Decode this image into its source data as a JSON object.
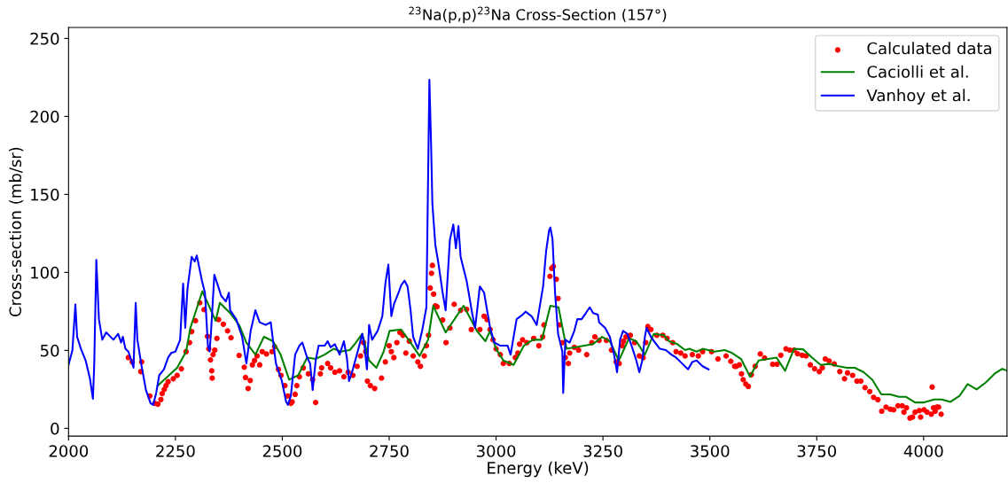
{
  "chart_data": {
    "type": "line",
    "title": "$^{23}$Na(p,p)$^{23}$Na Cross-Section (157°)",
    "xlabel": "Energy (keV)",
    "ylabel": "Cross-section (mb/sr)",
    "xlim": [
      2000,
      4195
    ],
    "ylim": [
      -5,
      257
    ],
    "xticks": [
      2000,
      2250,
      2500,
      2750,
      3000,
      3250,
      3500,
      3750,
      4000
    ],
    "yticks": [
      0,
      50,
      100,
      150,
      200,
      250
    ],
    "grid": false,
    "legend": "top right",
    "series": [
      {
        "name": "Calculated data",
        "type": "scatter",
        "marker": "circle",
        "color": "#ff0000",
        "x": [
          2140,
          2149,
          2171,
          2169,
          2190,
          2202,
          2209,
          2216,
          2219,
          2224,
          2228,
          2233,
          2245,
          2254,
          2264,
          2275,
          2283,
          2288,
          2297,
          2307,
          2317,
          2325,
          2328,
          2332,
          2335,
          2336,
          2338,
          2342,
          2347,
          2351,
          2362,
          2372,
          2380,
          2399,
          2411,
          2414,
          2420,
          2425,
          2430,
          2435,
          2441,
          2447,
          2453,
          2463,
          2476,
          2482,
          2491,
          2497,
          2506,
          2513,
          2520,
          2523,
          2530,
          2534,
          2540,
          2549,
          2561,
          2571,
          2578,
          2589,
          2592,
          2606,
          2613,
          2623,
          2634,
          2644,
          2654,
          2665,
          2675,
          2683,
          2690,
          2695,
          2699,
          2706,
          2716,
          2732,
          2741,
          2750,
          2755,
          2761,
          2768,
          2775,
          2782,
          2789,
          2797,
          2806,
          2817,
          2823,
          2832,
          2837,
          2842,
          2846,
          2849,
          2851,
          2854,
          2858,
          2862,
          2875,
          2883,
          2892,
          2902,
          2917,
          2931,
          2942,
          2962,
          2972,
          2979,
          2986,
          2993,
          3000,
          3010,
          3017,
          3031,
          3045,
          3051,
          3055,
          3062,
          3072,
          3088,
          3100,
          3109,
          3112,
          3126,
          3130,
          3134,
          3141,
          3145,
          3148,
          3155,
          3162,
          3169,
          3172,
          3183,
          3193,
          3212,
          3224,
          3231,
          3241,
          3258,
          3270,
          3281,
          3288,
          3295,
          3298,
          3304,
          3314,
          3324,
          3335,
          3344,
          3350,
          3355,
          3362,
          3376,
          3390,
          3400,
          3413,
          3421,
          3432,
          3442,
          3459,
          3473,
          3483,
          3504,
          3519,
          3538,
          3549,
          3558,
          3562,
          3569,
          3574,
          3578,
          3584,
          3590,
          3597,
          3606,
          3618,
          3628,
          3647,
          3657,
          3666,
          3678,
          3687,
          3697,
          3705,
          3716,
          3725,
          3735,
          3745,
          3756,
          3763,
          3770,
          3779,
          3791,
          3804,
          3815,
          3822,
          3834,
          3844,
          3853,
          3863,
          3874,
          3883,
          3893,
          3902,
          3912,
          3922,
          3930,
          3940,
          3950,
          3954,
          3960,
          3968,
          3974,
          3980,
          3990,
          3993,
          4001,
          4008,
          4018,
          4020,
          4023,
          4027,
          4031,
          4035,
          4041
        ],
        "values": [
          45.4,
          42.6,
          42.6,
          36.4,
          20.8,
          16,
          15.5,
          18.5,
          22.3,
          25,
          27.4,
          29.9,
          31.8,
          34,
          38.2,
          49.2,
          55,
          62.1,
          69,
          80.5,
          76.1,
          59,
          51,
          43.9,
          36.9,
          32.2,
          47.3,
          50.2,
          57.7,
          69.7,
          66.8,
          62.5,
          58.1,
          46.8,
          39.2,
          32.6,
          25.6,
          30.7,
          40.7,
          43.5,
          46.4,
          40.7,
          49.2,
          47.7,
          49.2,
          52.4,
          37.8,
          34,
          27.4,
          20.8,
          16,
          17,
          21.8,
          27.4,
          33.1,
          38.8,
          35,
          31.2,
          16.6,
          35,
          38.8,
          41.6,
          38.8,
          36,
          36.9,
          33.1,
          36,
          34,
          39.8,
          46.4,
          55,
          49.2,
          30.3,
          27.4,
          25.6,
          32.2,
          42.6,
          53,
          49.2,
          45.4,
          55,
          61.5,
          59.7,
          48.3,
          55.9,
          46.4,
          42.6,
          39.8,
          46.4,
          53,
          59.7,
          90,
          99.4,
          104.5,
          86.1,
          78.6,
          78,
          69.5,
          55,
          64.4,
          79.5,
          75.7,
          76.3,
          63.4,
          63.4,
          71.9,
          69.7,
          63.4,
          56.8,
          51,
          47.3,
          41.6,
          41.6,
          45.4,
          48.3,
          54,
          56.8,
          55,
          57.7,
          53,
          58.7,
          66.3,
          97.5,
          102.6,
          103.8,
          95.6,
          83.3,
          66.3,
          55,
          45.4,
          41.6,
          48.3,
          52,
          50.2,
          47.3,
          55,
          58.7,
          56.4,
          56.4,
          50.2,
          42.6,
          41.6,
          53,
          55.9,
          58.7,
          59.7,
          55,
          46.4,
          45.4,
          55,
          65.3,
          63.4,
          59.7,
          59.7,
          57.7,
          55,
          49.2,
          48.3,
          46.4,
          47.3,
          46.4,
          49.2,
          49.2,
          44.5,
          46.4,
          43,
          39.8,
          39.8,
          40.7,
          35,
          31.2,
          28.4,
          26.9,
          34.4,
          39.8,
          47.7,
          45.1,
          41.1,
          41.1,
          46.9,
          51,
          50.2,
          50.2,
          47.9,
          46.9,
          46.4,
          40.7,
          38.2,
          36.4,
          38.8,
          44.5,
          43.2,
          41.3,
          36.4,
          31.8,
          35.6,
          34,
          30.3,
          30.3,
          26.1,
          23.6,
          19.9,
          18.4,
          11,
          13.6,
          12.3,
          11.9,
          14.5,
          14.5,
          10.4,
          13.2,
          6.6,
          7.2,
          10.4,
          11.4,
          7.2,
          11.9,
          10.4,
          9.1,
          26.5,
          13.2,
          11,
          13.6,
          13.6,
          9.1
        ]
      },
      {
        "name": "Caciolli et al.",
        "color": "#008000",
        "x": [
          2209,
          2254,
          2275,
          2285,
          2313,
          2344,
          2354,
          2378,
          2399,
          2416,
          2437,
          2457,
          2478,
          2496,
          2516,
          2537,
          2558,
          2578,
          2599,
          2620,
          2637,
          2658,
          2672,
          2687,
          2703,
          2720,
          2737,
          2751,
          2778,
          2800,
          2821,
          2841,
          2853,
          2882,
          2924,
          2955,
          2975,
          2986,
          3000,
          3017,
          3041,
          3065,
          3086,
          3107,
          3127,
          3146,
          3165,
          3227,
          3248,
          3266,
          3287,
          3311,
          3328,
          3348,
          3369,
          3393,
          3404,
          3424,
          3442,
          3452,
          3469,
          3483,
          3511,
          3535,
          3552,
          3573,
          3594,
          3614,
          3656,
          3676,
          3697,
          3718,
          3739,
          3759,
          3780,
          3801,
          3821,
          3839,
          3860,
          3880,
          3901,
          3922,
          3942,
          3959,
          3980,
          4001,
          4025,
          4042,
          4063,
          4084,
          4103,
          4124,
          4145,
          4166,
          4184,
          4195
        ],
        "values": [
          27.4,
          38.8,
          49.2,
          64.4,
          88,
          69,
          80.5,
          73.9,
          66.3,
          55,
          47.3,
          58.7,
          55.9,
          47.3,
          31.2,
          34,
          45.4,
          44.5,
          47.3,
          51,
          49.2,
          50.2,
          55,
          60.6,
          43.5,
          38.8,
          49.2,
          62.5,
          63.4,
          55,
          46.4,
          56.8,
          78.6,
          61.5,
          78.6,
          62.5,
          55.9,
          62.5,
          51,
          43.5,
          40.7,
          53,
          56.8,
          56.8,
          78.6,
          77.6,
          51,
          54,
          58.7,
          55.9,
          43.5,
          57.7,
          55.9,
          47.3,
          60.6,
          59.7,
          55.9,
          54,
          50.2,
          51,
          49.2,
          51,
          49.2,
          50.2,
          48.3,
          44.5,
          33.1,
          43.5,
          45.4,
          36.9,
          51,
          50.7,
          45.4,
          40.7,
          41.3,
          39.8,
          38.8,
          38.8,
          36,
          31.2,
          21.8,
          21.8,
          20.2,
          20.2,
          16.6,
          16.6,
          18.5,
          18.5,
          17,
          20.8,
          28.4,
          25,
          29.3,
          35,
          38.2,
          36.9
        ]
      },
      {
        "name": "Vanhoy et al.",
        "color": "#0000ff",
        "x": [
          2000,
          2009,
          2016,
          2020,
          2029,
          2040,
          2050,
          2057,
          2060,
          2065,
          2071,
          2079,
          2088,
          2105,
          2116,
          2123,
          2127,
          2133,
          2140,
          2147,
          2152,
          2157,
          2161,
          2171,
          2181,
          2192,
          2198,
          2205,
          2212,
          2223,
          2233,
          2240,
          2250,
          2261,
          2268,
          2273,
          2278,
          2288,
          2295,
          2300,
          2312,
          2319,
          2326,
          2330,
          2333,
          2341,
          2350,
          2357,
          2368,
          2375,
          2378,
          2392,
          2406,
          2416,
          2426,
          2437,
          2447,
          2461,
          2473,
          2478,
          2485,
          2499,
          2509,
          2513,
          2520,
          2530,
          2540,
          2547,
          2558,
          2565,
          2571,
          2578,
          2585,
          2599,
          2606,
          2613,
          2623,
          2634,
          2644,
          2651,
          2656,
          2665,
          2678,
          2687,
          2692,
          2698,
          2703,
          2710,
          2723,
          2734,
          2741,
          2748,
          2755,
          2761,
          2772,
          2778,
          2786,
          2793,
          2800,
          2806,
          2817,
          2827,
          2837,
          2844,
          2848,
          2851,
          2858,
          2865,
          2875,
          2882,
          2892,
          2900,
          2906,
          2912,
          2917,
          2931,
          2944,
          2951,
          2962,
          2972,
          2986,
          2996,
          3010,
          3027,
          3034,
          3048,
          3062,
          3069,
          3083,
          3095,
          3103,
          3110,
          3117,
          3124,
          3127,
          3132,
          3138,
          3145,
          3155,
          3157,
          3162,
          3172,
          3183,
          3190,
          3200,
          3210,
          3219,
          3227,
          3238,
          3241,
          3255,
          3266,
          3276,
          3283,
          3290,
          3297,
          3307,
          3317,
          3328,
          3335,
          3342,
          3348,
          3352,
          3362,
          3372,
          3383,
          3397,
          3410,
          3421,
          3435,
          3449,
          3459,
          3469,
          3483,
          3497
        ],
        "values": [
          40.7,
          50,
          79.4,
          58.7,
          51,
          43.5,
          32,
          19,
          40,
          108,
          70,
          56.8,
          61.5,
          56.8,
          60.6,
          55,
          58.7,
          51,
          49.2,
          43.5,
          38.8,
          80.5,
          56.8,
          39.8,
          24.6,
          16,
          15.1,
          22.7,
          34,
          37.8,
          45.4,
          48.3,
          49.2,
          56.8,
          92.8,
          64.4,
          89,
          110,
          107,
          110.8,
          94.7,
          87,
          53,
          49.2,
          60.6,
          98.5,
          91,
          85,
          81.4,
          87,
          75.7,
          70,
          58.7,
          41.6,
          62.5,
          75.7,
          68,
          66.3,
          68,
          56.8,
          41.6,
          30.3,
          17,
          15.1,
          20.8,
          47.3,
          53,
          55,
          45.4,
          41.6,
          24.6,
          43.5,
          53,
          53,
          55.9,
          52,
          54,
          47.3,
          55.9,
          45.4,
          30.3,
          37.8,
          51,
          60.6,
          53,
          37.8,
          66.3,
          56.8,
          62.5,
          71.9,
          92.8,
          105,
          71.9,
          79.5,
          87,
          91.8,
          94.7,
          91,
          75.7,
          58.7,
          51,
          62.5,
          77.6,
          223.5,
          181.8,
          144,
          117.4,
          106,
          87,
          75.7,
          121,
          130.7,
          115.5,
          129.7,
          110,
          94.7,
          73.9,
          64.4,
          91,
          87,
          64.4,
          55,
          53,
          53,
          47.3,
          70,
          72.9,
          74.8,
          71.9,
          66.3,
          79.5,
          91,
          113.6,
          126.9,
          128.8,
          121.2,
          87,
          60.6,
          49.2,
          22.7,
          56.8,
          55,
          62.5,
          70,
          70,
          73.9,
          77.6,
          73.9,
          72.9,
          68,
          64.4,
          58.7,
          47.3,
          36,
          56.8,
          62.5,
          60.6,
          53,
          43.5,
          36,
          43.5,
          58.7,
          64.4,
          58.7,
          55,
          51,
          50.2,
          47.3,
          45.4,
          41.6,
          37.8,
          42.6,
          43.5,
          39.8,
          37.8
        ]
      }
    ]
  }
}
